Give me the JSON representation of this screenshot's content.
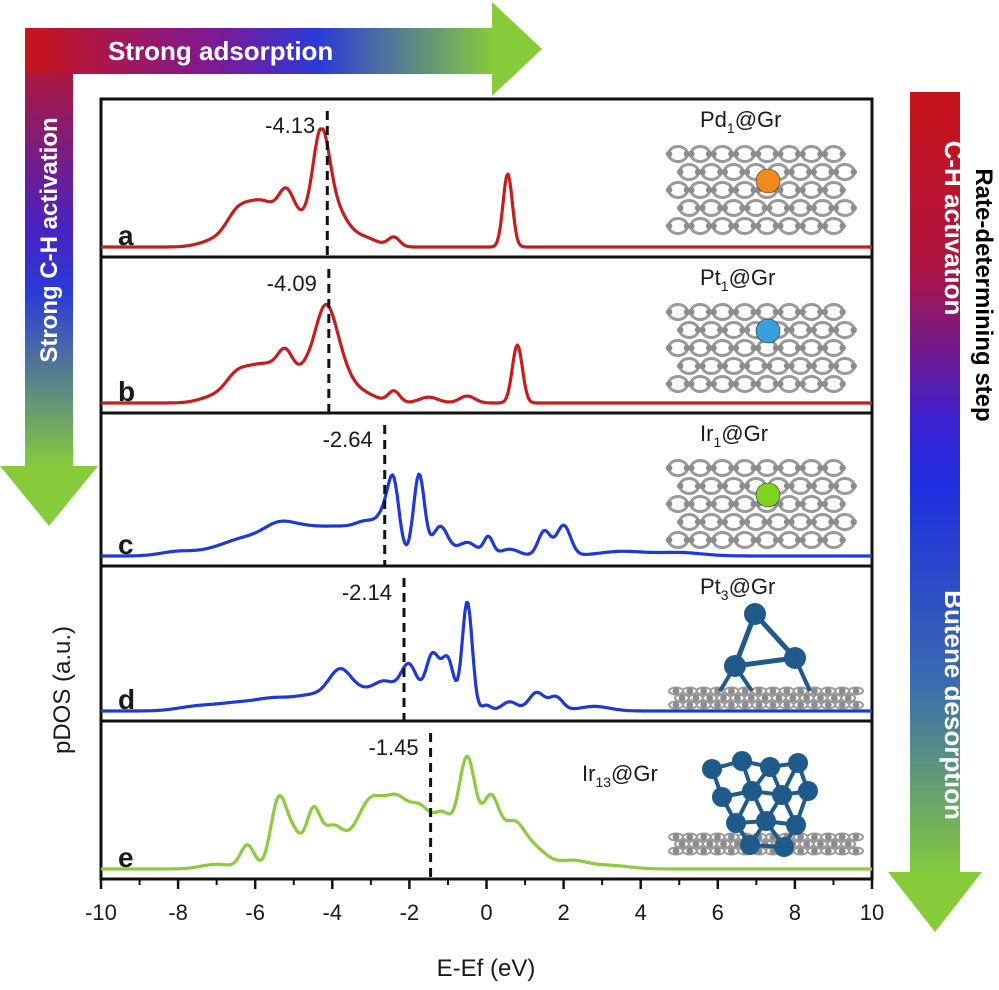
{
  "arrows": {
    "top": "Strong adsorption",
    "left": "Strong C-H activation",
    "right_red": "C-H activation",
    "right_blue": "Butene desorption",
    "right_side": "Rate-determining step"
  },
  "colors": {
    "red": "#c8141a",
    "purple": "#5a20b0",
    "blue": "#1e2ee0",
    "green": "#86cc3a",
    "curve_red": "#c41e1e",
    "curve_blue": "#1f39d6",
    "curve_green": "#8ccc3c",
    "carbon": "#8c8c8c",
    "Pd": "#f08a1c",
    "Pt1": "#3aa0dc",
    "Ir1": "#7ed321",
    "cluster": "#1e5a8a"
  },
  "chart_data": {
    "type": "line",
    "xlabel": "E-Ef (eV)",
    "ylabel": "pDOS (a.u.)",
    "xlim": [
      -10,
      10
    ],
    "xticks": [
      "-10",
      "-8",
      "-6",
      "-4",
      "-2",
      "0",
      "2",
      "4",
      "6",
      "8",
      "10"
    ],
    "panels": [
      {
        "letter": "a",
        "system": "Pd",
        "subscript": "1",
        "suffix": "@Gr",
        "center": -4.13,
        "center_label": "-4.13",
        "color_key": "curve_red",
        "atom_key": "Pd",
        "structure": "single",
        "peaks": [
          {
            "x": -7.0,
            "h": 0.06,
            "w": 0.4
          },
          {
            "x": -6.5,
            "h": 0.2,
            "w": 0.28
          },
          {
            "x": -6.05,
            "h": 0.26,
            "w": 0.32
          },
          {
            "x": -5.6,
            "h": 0.24,
            "w": 0.3
          },
          {
            "x": -5.2,
            "h": 0.32,
            "w": 0.2
          },
          {
            "x": -4.85,
            "h": 0.2,
            "w": 0.25
          },
          {
            "x": -4.3,
            "h": 0.88,
            "w": 0.22
          },
          {
            "x": -3.9,
            "h": 0.28,
            "w": 0.3
          },
          {
            "x": -3.2,
            "h": 0.08,
            "w": 0.35
          },
          {
            "x": -2.4,
            "h": 0.08,
            "w": 0.15
          },
          {
            "x": 0.55,
            "h": 0.62,
            "w": 0.12
          }
        ]
      },
      {
        "letter": "b",
        "system": "Pt",
        "subscript": "1",
        "suffix": "@Gr",
        "center": -4.09,
        "center_label": "-4.09",
        "color_key": "curve_red",
        "atom_key": "Pt1",
        "structure": "single",
        "peaks": [
          {
            "x": -7.0,
            "h": 0.06,
            "w": 0.4
          },
          {
            "x": -6.5,
            "h": 0.18,
            "w": 0.28
          },
          {
            "x": -6.0,
            "h": 0.24,
            "w": 0.32
          },
          {
            "x": -5.5,
            "h": 0.22,
            "w": 0.3
          },
          {
            "x": -5.2,
            "h": 0.28,
            "w": 0.2
          },
          {
            "x": -4.75,
            "h": 0.22,
            "w": 0.25
          },
          {
            "x": -4.2,
            "h": 0.72,
            "w": 0.28
          },
          {
            "x": -3.8,
            "h": 0.25,
            "w": 0.3
          },
          {
            "x": -3.2,
            "h": 0.08,
            "w": 0.35
          },
          {
            "x": -2.4,
            "h": 0.1,
            "w": 0.15
          },
          {
            "x": -1.5,
            "h": 0.05,
            "w": 0.25
          },
          {
            "x": -0.5,
            "h": 0.06,
            "w": 0.2
          },
          {
            "x": 0.8,
            "h": 0.5,
            "w": 0.13
          }
        ]
      },
      {
        "letter": "c",
        "system": "Ir",
        "subscript": "1",
        "suffix": "@Gr",
        "center": -2.64,
        "center_label": "-2.64",
        "color_key": "curve_blue",
        "atom_key": "Ir1",
        "structure": "single",
        "peaks": [
          {
            "x": -8.0,
            "h": 0.04,
            "w": 0.45
          },
          {
            "x": -7.0,
            "h": 0.05,
            "w": 0.45
          },
          {
            "x": -6.3,
            "h": 0.12,
            "w": 0.45
          },
          {
            "x": -5.4,
            "h": 0.25,
            "w": 0.45
          },
          {
            "x": -4.6,
            "h": 0.18,
            "w": 0.45
          },
          {
            "x": -3.8,
            "h": 0.2,
            "w": 0.45
          },
          {
            "x": -3.0,
            "h": 0.26,
            "w": 0.38
          },
          {
            "x": -2.6,
            "h": 0.22,
            "w": 0.18
          },
          {
            "x": -2.4,
            "h": 0.5,
            "w": 0.14
          },
          {
            "x": -1.75,
            "h": 0.72,
            "w": 0.14
          },
          {
            "x": -1.2,
            "h": 0.26,
            "w": 0.2
          },
          {
            "x": -0.5,
            "h": 0.12,
            "w": 0.25
          },
          {
            "x": 0.05,
            "h": 0.16,
            "w": 0.12
          },
          {
            "x": 0.6,
            "h": 0.06,
            "w": 0.25
          },
          {
            "x": 1.5,
            "h": 0.22,
            "w": 0.16
          },
          {
            "x": 2.0,
            "h": 0.27,
            "w": 0.18
          },
          {
            "x": 3.5,
            "h": 0.04,
            "w": 0.6
          },
          {
            "x": 5.0,
            "h": 0.03,
            "w": 0.6
          }
        ]
      },
      {
        "letter": "d",
        "system": "Pt",
        "subscript": "3",
        "suffix": "@Gr",
        "center": -2.14,
        "center_label": "-2.14",
        "color_key": "curve_blue",
        "atom_key": "cluster",
        "structure": "trimer",
        "peaks": [
          {
            "x": -7.5,
            "h": 0.04,
            "w": 0.5
          },
          {
            "x": -6.5,
            "h": 0.06,
            "w": 0.5
          },
          {
            "x": -5.5,
            "h": 0.1,
            "w": 0.5
          },
          {
            "x": -4.5,
            "h": 0.12,
            "w": 0.45
          },
          {
            "x": -3.8,
            "h": 0.3,
            "w": 0.3
          },
          {
            "x": -3.2,
            "h": 0.14,
            "w": 0.35
          },
          {
            "x": -2.6,
            "h": 0.22,
            "w": 0.3
          },
          {
            "x": -2.0,
            "h": 0.38,
            "w": 0.22
          },
          {
            "x": -1.4,
            "h": 0.48,
            "w": 0.18
          },
          {
            "x": -1.0,
            "h": 0.43,
            "w": 0.16
          },
          {
            "x": -0.5,
            "h": 0.95,
            "w": 0.13
          },
          {
            "x": 0.0,
            "h": 0.05,
            "w": 0.12
          },
          {
            "x": 0.6,
            "h": 0.08,
            "w": 0.2
          },
          {
            "x": 1.3,
            "h": 0.16,
            "w": 0.2
          },
          {
            "x": 1.8,
            "h": 0.12,
            "w": 0.18
          },
          {
            "x": 2.8,
            "h": 0.04,
            "w": 0.4
          }
        ]
      },
      {
        "letter": "e",
        "system": "Ir",
        "subscript": "13",
        "suffix": "@Gr",
        "center": -1.45,
        "center_label": "-1.45",
        "color_key": "curve_green",
        "atom_key": "cluster",
        "structure": "cluster",
        "peaks": [
          {
            "x": -7.0,
            "h": 0.04,
            "w": 0.4
          },
          {
            "x": -6.2,
            "h": 0.2,
            "w": 0.18
          },
          {
            "x": -5.4,
            "h": 0.56,
            "w": 0.2
          },
          {
            "x": -5.0,
            "h": 0.28,
            "w": 0.22
          },
          {
            "x": -4.5,
            "h": 0.42,
            "w": 0.18
          },
          {
            "x": -4.0,
            "h": 0.34,
            "w": 0.3
          },
          {
            "x": -3.0,
            "h": 0.58,
            "w": 0.4
          },
          {
            "x": -2.3,
            "h": 0.44,
            "w": 0.3
          },
          {
            "x": -1.7,
            "h": 0.46,
            "w": 0.3
          },
          {
            "x": -1.1,
            "h": 0.4,
            "w": 0.25
          },
          {
            "x": -0.5,
            "h": 0.92,
            "w": 0.22
          },
          {
            "x": 0.1,
            "h": 0.56,
            "w": 0.22
          },
          {
            "x": 0.7,
            "h": 0.38,
            "w": 0.3
          },
          {
            "x": 1.3,
            "h": 0.14,
            "w": 0.3
          },
          {
            "x": 2.2,
            "h": 0.07,
            "w": 0.4
          },
          {
            "x": 3.2,
            "h": 0.03,
            "w": 0.5
          }
        ]
      }
    ]
  }
}
